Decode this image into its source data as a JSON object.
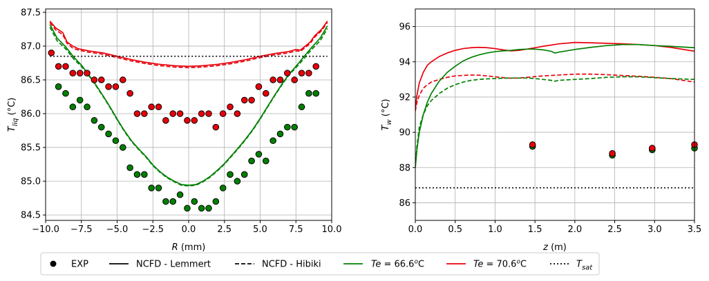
{
  "chart_data": [
    {
      "type": "line",
      "xlabel": "R (mm)",
      "ylabel": "T_liq (°C)",
      "xlim": [
        -10,
        10
      ],
      "ylim": [
        84.42,
        87.55
      ],
      "xticks": [
        -10,
        -7.5,
        -5,
        -2.5,
        0,
        2.5,
        5,
        7.5,
        10
      ],
      "xtick_labels": [
        "−10.0",
        "−7.5",
        "−5.0",
        "−2.5",
        "0.0",
        "2.5",
        "5.0",
        "7.5",
        "10.0"
      ],
      "yticks": [
        84.5,
        85,
        85.5,
        86,
        86.5,
        87,
        87.5
      ],
      "ytick_labels": [
        "84.5",
        "85.0",
        "85.5",
        "86.0",
        "86.5",
        "87.0",
        "87.5"
      ],
      "grid": true,
      "series": [
        {
          "name": "Te = 70.6°C",
          "method": "NCFD - Lemmert",
          "color": "#e8000b",
          "dash": "solid",
          "x": [
            -9.7,
            -9.3,
            -8.8,
            -8.5,
            -8.1,
            -7.7,
            -7.0,
            -6.0,
            -5.0,
            -4.0,
            -3.0,
            -2.0,
            -1.0,
            0.0,
            1.0,
            2.0,
            3.0,
            4.0,
            5.0,
            6.0,
            7.0,
            7.5,
            7.8,
            8.1,
            8.5,
            8.8,
            9.3,
            9.7
          ],
          "y": [
            87.37,
            87.27,
            87.2,
            87.06,
            87.0,
            86.96,
            86.93,
            86.9,
            86.85,
            86.8,
            86.76,
            86.73,
            86.71,
            86.7,
            86.71,
            86.73,
            86.76,
            86.8,
            86.85,
            86.89,
            86.92,
            86.95,
            86.94,
            86.99,
            87.06,
            87.15,
            87.25,
            87.37
          ]
        },
        {
          "name": "Te = 70.6°C",
          "method": "NCFD - Hibiki",
          "color": "#e8000b",
          "dash": "dashed",
          "x": [
            -9.7,
            -9.3,
            -8.8,
            -8.5,
            -8.1,
            -7.7,
            -7.0,
            -6.0,
            -5.0,
            -4.0,
            -3.0,
            -2.0,
            -1.0,
            0.0,
            1.0,
            2.0,
            3.0,
            4.0,
            5.0,
            6.0,
            7.0,
            7.5,
            7.8,
            8.1,
            8.5,
            8.8,
            9.3,
            9.7
          ],
          "y": [
            87.35,
            87.24,
            87.17,
            87.04,
            86.97,
            86.94,
            86.91,
            86.88,
            86.83,
            86.78,
            86.74,
            86.71,
            86.69,
            86.68,
            86.69,
            86.71,
            86.74,
            86.78,
            86.83,
            86.87,
            86.9,
            86.93,
            86.92,
            86.97,
            87.04,
            87.13,
            87.23,
            87.35
          ]
        },
        {
          "name": "Te = 66.6°C",
          "method": "NCFD - Lemmert",
          "color": "#008000",
          "dash": "solid",
          "x": [
            -9.7,
            -9.2,
            -8.6,
            -8.0,
            -7.5,
            -7.0,
            -6.5,
            -6.0,
            -5.5,
            -5.0,
            -4.5,
            -4.0,
            -3.5,
            -3.0,
            -2.5,
            -2.0,
            -1.5,
            -1.0,
            -0.5,
            0.0,
            0.5,
            1.0,
            1.5,
            2.0,
            2.5,
            3.0,
            3.5,
            4.0,
            4.5,
            5.0,
            5.5,
            6.0,
            6.5,
            7.0,
            7.5,
            8.0,
            8.6,
            9.2,
            9.7
          ],
          "y": [
            87.32,
            87.12,
            86.99,
            86.83,
            86.72,
            86.58,
            86.43,
            86.27,
            86.1,
            85.92,
            85.75,
            85.6,
            85.48,
            85.37,
            85.24,
            85.14,
            85.06,
            85.0,
            84.95,
            84.94,
            84.95,
            85.0,
            85.07,
            85.16,
            85.26,
            85.38,
            85.5,
            85.63,
            85.77,
            85.93,
            86.1,
            86.27,
            86.43,
            86.58,
            86.7,
            86.83,
            86.98,
            87.12,
            87.3
          ]
        },
        {
          "name": "Te = 66.6°C",
          "method": "NCFD - Hibiki",
          "color": "#008000",
          "dash": "dashed",
          "x": [
            -9.7,
            -9.2,
            -8.6,
            -8.0,
            -7.5,
            -7.0,
            -6.5,
            -6.0,
            -5.5,
            -5.0,
            -4.5,
            -4.0,
            -3.5,
            -3.0,
            -2.5,
            -2.0,
            -1.5,
            -1.0,
            -0.5,
            0.0,
            0.5,
            1.0,
            1.5,
            2.0,
            2.5,
            3.0,
            3.5,
            4.0,
            4.5,
            5.0,
            5.5,
            6.0,
            6.5,
            7.0,
            7.5,
            8.0,
            8.6,
            9.2,
            9.7
          ],
          "y": [
            87.28,
            87.08,
            86.96,
            86.8,
            86.7,
            86.57,
            86.42,
            86.26,
            86.09,
            85.91,
            85.74,
            85.59,
            85.47,
            85.36,
            85.23,
            85.13,
            85.05,
            84.99,
            84.94,
            84.93,
            84.94,
            84.99,
            85.06,
            85.15,
            85.25,
            85.37,
            85.49,
            85.62,
            85.76,
            85.92,
            86.09,
            86.26,
            86.42,
            86.57,
            86.68,
            86.8,
            86.95,
            87.08,
            87.26
          ]
        },
        {
          "name": "T_sat",
          "color": "#000000",
          "dash": "dotted",
          "x": [
            -9.7,
            9.7
          ],
          "y": [
            86.85,
            86.85
          ]
        }
      ],
      "points": [
        {
          "name": "EXP",
          "color": "#e8000b",
          "x": [
            -9.6,
            -9.1,
            -8.6,
            -8.1,
            -7.6,
            -7.1,
            -6.6,
            -6.1,
            -5.6,
            -5.1,
            -4.6,
            -4.1,
            -3.6,
            -3.1,
            -2.6,
            -2.1,
            -1.6,
            -1.1,
            -0.6,
            -0.1,
            0.4,
            0.9,
            1.4,
            1.9,
            2.4,
            2.9,
            3.4,
            3.9,
            4.4,
            4.9,
            5.4,
            5.9,
            6.4,
            6.9,
            7.4,
            7.9,
            8.4,
            8.9
          ],
          "y": [
            86.9,
            86.7,
            86.7,
            86.6,
            86.6,
            86.6,
            86.5,
            86.5,
            86.4,
            86.4,
            86.5,
            86.3,
            86.0,
            86.0,
            86.1,
            86.1,
            85.9,
            86.0,
            86.0,
            85.9,
            85.9,
            86.0,
            86.0,
            85.8,
            86.0,
            86.1,
            86.0,
            86.2,
            86.2,
            86.4,
            86.3,
            86.5,
            86.5,
            86.6,
            86.5,
            86.6,
            86.6,
            86.7
          ]
        },
        {
          "name": "EXP",
          "color": "#008000",
          "x": [
            -9.1,
            -8.6,
            -8.1,
            -7.6,
            -7.1,
            -6.6,
            -6.1,
            -5.6,
            -5.1,
            -4.6,
            -4.1,
            -3.6,
            -3.1,
            -2.6,
            -2.1,
            -1.6,
            -1.1,
            -0.6,
            -0.1,
            0.4,
            0.9,
            1.4,
            1.9,
            2.4,
            2.9,
            3.4,
            3.9,
            4.4,
            4.9,
            5.4,
            5.9,
            6.4,
            6.9,
            7.4,
            7.9,
            8.4,
            8.9
          ],
          "y": [
            86.4,
            86.3,
            86.1,
            86.2,
            86.1,
            85.9,
            85.8,
            85.7,
            85.6,
            85.5,
            85.2,
            85.1,
            85.1,
            84.9,
            84.9,
            84.7,
            84.7,
            84.8,
            84.6,
            84.7,
            84.6,
            84.6,
            84.7,
            84.9,
            85.1,
            85.0,
            85.1,
            85.3,
            85.4,
            85.3,
            85.6,
            85.7,
            85.8,
            85.8,
            86.1,
            86.3,
            86.3
          ]
        }
      ]
    },
    {
      "type": "line",
      "xlabel": "z (m)",
      "ylabel": "T_w (°C)",
      "xlim": [
        0,
        3.5
      ],
      "ylim": [
        85,
        97
      ],
      "xticks": [
        0,
        0.5,
        1,
        1.5,
        2,
        2.5,
        3,
        3.5
      ],
      "xtick_labels": [
        "0.0",
        "0.5",
        "1.0",
        "1.5",
        "2.0",
        "2.5",
        "3.0",
        "3.5"
      ],
      "yticks": [
        86,
        88,
        90,
        92,
        94,
        96
      ],
      "ytick_labels": [
        "86",
        "88",
        "90",
        "92",
        "94",
        "96"
      ],
      "grid": true,
      "series": [
        {
          "name": "Te = 70.6°C",
          "method": "NCFD - Lemmert",
          "color": "#e8000b",
          "dash": "solid",
          "x": [
            0.0,
            0.02,
            0.05,
            0.1,
            0.15,
            0.2,
            0.3,
            0.4,
            0.5,
            0.6,
            0.7,
            0.8,
            0.9,
            1.0,
            1.1,
            1.2,
            1.3,
            1.4,
            1.5,
            1.6,
            1.8,
            2.0,
            2.2,
            2.4,
            2.6,
            2.8,
            3.0,
            3.2,
            3.5
          ],
          "y": [
            91.3,
            92.1,
            92.8,
            93.4,
            93.8,
            94.0,
            94.3,
            94.5,
            94.65,
            94.75,
            94.8,
            94.82,
            94.8,
            94.75,
            94.68,
            94.62,
            94.65,
            94.72,
            94.8,
            94.88,
            95.02,
            95.1,
            95.08,
            95.05,
            95.02,
            94.98,
            94.92,
            94.82,
            94.6
          ]
        },
        {
          "name": "Te = 70.6°C",
          "method": "NCFD - Hibiki",
          "color": "#e8000b",
          "dash": "dashed",
          "x": [
            0.0,
            0.02,
            0.05,
            0.1,
            0.15,
            0.2,
            0.3,
            0.4,
            0.5,
            0.6,
            0.7,
            0.8,
            0.9,
            1.0,
            1.1,
            1.2,
            1.3,
            1.4,
            1.5,
            1.6,
            1.8,
            2.0,
            2.2,
            2.4,
            2.6,
            2.8,
            3.0,
            3.2,
            3.5
          ],
          "y": [
            91.2,
            91.7,
            92.1,
            92.5,
            92.7,
            92.85,
            93.0,
            93.12,
            93.2,
            93.23,
            93.25,
            93.24,
            93.2,
            93.15,
            93.1,
            93.07,
            93.08,
            93.12,
            93.16,
            93.2,
            93.25,
            93.3,
            93.3,
            93.27,
            93.22,
            93.18,
            93.12,
            93.05,
            92.85
          ]
        },
        {
          "name": "Te = 66.6°C",
          "method": "NCFD - Lemmert",
          "color": "#008000",
          "dash": "solid",
          "x": [
            0.0,
            0.02,
            0.05,
            0.1,
            0.15,
            0.2,
            0.3,
            0.4,
            0.5,
            0.6,
            0.7,
            0.8,
            0.9,
            1.0,
            1.1,
            1.2,
            1.3,
            1.4,
            1.5,
            1.6,
            1.7,
            1.75,
            1.8,
            2.0,
            2.2,
            2.4,
            2.6,
            2.8,
            3.0,
            3.2,
            3.5
          ],
          "y": [
            88.0,
            89.0,
            90.0,
            91.0,
            91.7,
            92.2,
            92.9,
            93.4,
            93.75,
            94.05,
            94.25,
            94.4,
            94.5,
            94.58,
            94.62,
            94.65,
            94.7,
            94.72,
            94.72,
            94.68,
            94.6,
            94.5,
            94.55,
            94.7,
            94.82,
            94.92,
            94.98,
            94.98,
            94.92,
            94.88,
            94.8
          ]
        },
        {
          "name": "Te = 66.6°C",
          "method": "NCFD - Hibiki",
          "color": "#008000",
          "dash": "dashed",
          "x": [
            0.0,
            0.02,
            0.05,
            0.1,
            0.15,
            0.2,
            0.3,
            0.4,
            0.5,
            0.6,
            0.7,
            0.8,
            0.9,
            1.0,
            1.1,
            1.2,
            1.3,
            1.4,
            1.5,
            1.6,
            1.7,
            1.75,
            1.8,
            2.0,
            2.2,
            2.4,
            2.6,
            2.8,
            3.0,
            3.2,
            3.5
          ],
          "y": [
            88.0,
            89.2,
            90.3,
            91.0,
            91.5,
            91.8,
            92.2,
            92.5,
            92.7,
            92.85,
            92.95,
            93.0,
            93.03,
            93.05,
            93.07,
            93.08,
            93.08,
            93.08,
            93.05,
            93.0,
            92.95,
            92.9,
            92.95,
            93.0,
            93.05,
            93.12,
            93.15,
            93.15,
            93.1,
            93.05,
            93.0
          ]
        },
        {
          "name": "T_sat",
          "color": "#000000",
          "dash": "dotted",
          "x": [
            0.0,
            3.5
          ],
          "y": [
            86.85,
            86.85
          ]
        }
      ],
      "points": [
        {
          "name": "EXP",
          "color": "#008000",
          "x": [
            1.47,
            2.47,
            2.97,
            3.5
          ],
          "y": [
            89.2,
            88.7,
            89.0,
            89.1
          ]
        },
        {
          "name": "EXP",
          "color": "#e8000b",
          "x": [
            1.47,
            2.47,
            2.97,
            3.5
          ],
          "y": [
            89.3,
            88.8,
            89.1,
            89.3
          ]
        }
      ]
    }
  ],
  "legend": {
    "items": [
      {
        "kind": "marker",
        "label": "EXP",
        "color": "#000000"
      },
      {
        "kind": "line",
        "label": "NCFD - Lemmert",
        "color": "#000000",
        "dash": "solid"
      },
      {
        "kind": "line",
        "label": "NCFD - Hibiki",
        "color": "#000000",
        "dash": "dashed"
      },
      {
        "kind": "line",
        "label": "Te = 66.6°C",
        "color": "#008000",
        "dash": "solid"
      },
      {
        "kind": "line",
        "label": "Te = 70.6°C",
        "color": "#e8000b",
        "dash": "solid"
      },
      {
        "kind": "line",
        "label": "T_sat",
        "color": "#000000",
        "dash": "dotted"
      }
    ]
  }
}
